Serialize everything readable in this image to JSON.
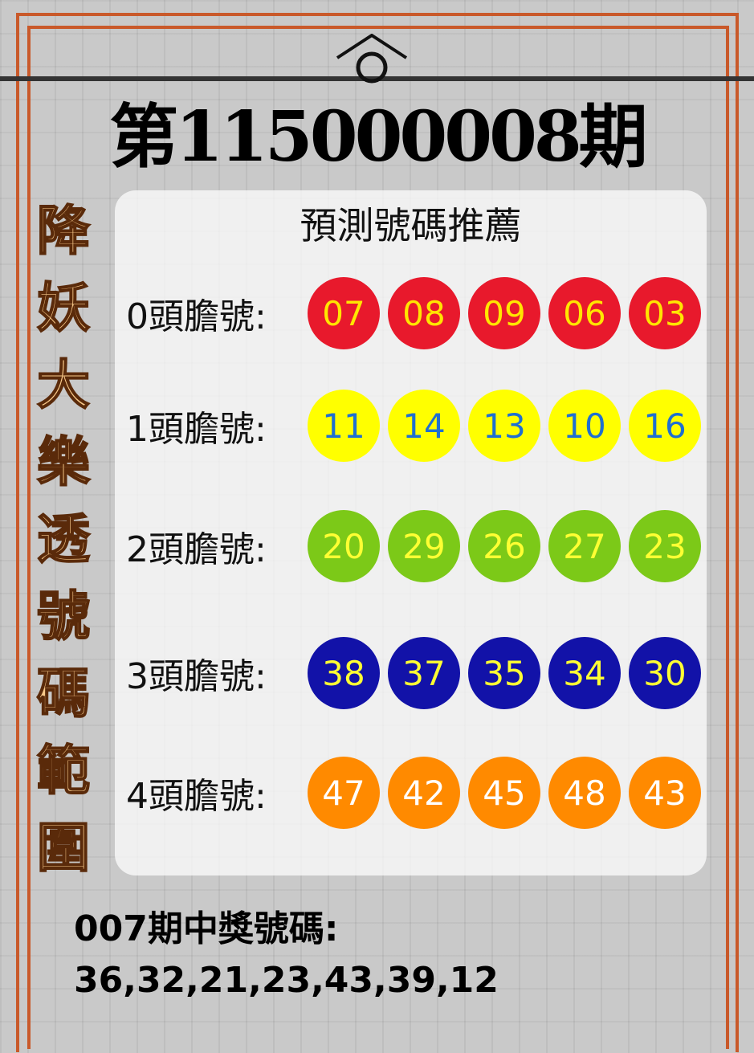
{
  "title": "第115000008期",
  "side_text": [
    "降",
    "妖",
    "大",
    "樂",
    "透",
    "號",
    "碼",
    "範",
    "圍"
  ],
  "panel_title": "預測號碼推薦",
  "rows": [
    {
      "label": "0頭膽號:",
      "numbers": [
        "07",
        "08",
        "09",
        "06",
        "03"
      ],
      "ball_color": "#e8192c",
      "text_color": "#ffe600"
    },
    {
      "label": "1頭膽號:",
      "numbers": [
        "11",
        "14",
        "13",
        "10",
        "16"
      ],
      "ball_color": "#ffff00",
      "text_color": "#1f6fd1"
    },
    {
      "label": "2頭膽號:",
      "numbers": [
        "20",
        "29",
        "26",
        "27",
        "23"
      ],
      "ball_color": "#7cc918",
      "text_color": "#ffff33"
    },
    {
      "label": "3頭膽號:",
      "numbers": [
        "38",
        "37",
        "35",
        "34",
        "30"
      ],
      "ball_color": "#1212a8",
      "text_color": "#ffff33"
    },
    {
      "label": "4頭膽號:",
      "numbers": [
        "47",
        "42",
        "45",
        "48",
        "43"
      ],
      "ball_color": "#ff8a00",
      "text_color": "#ffffff"
    }
  ],
  "previous": {
    "label": "007期中獎號碼:",
    "numbers": "36,32,21,23,43,39,12"
  }
}
